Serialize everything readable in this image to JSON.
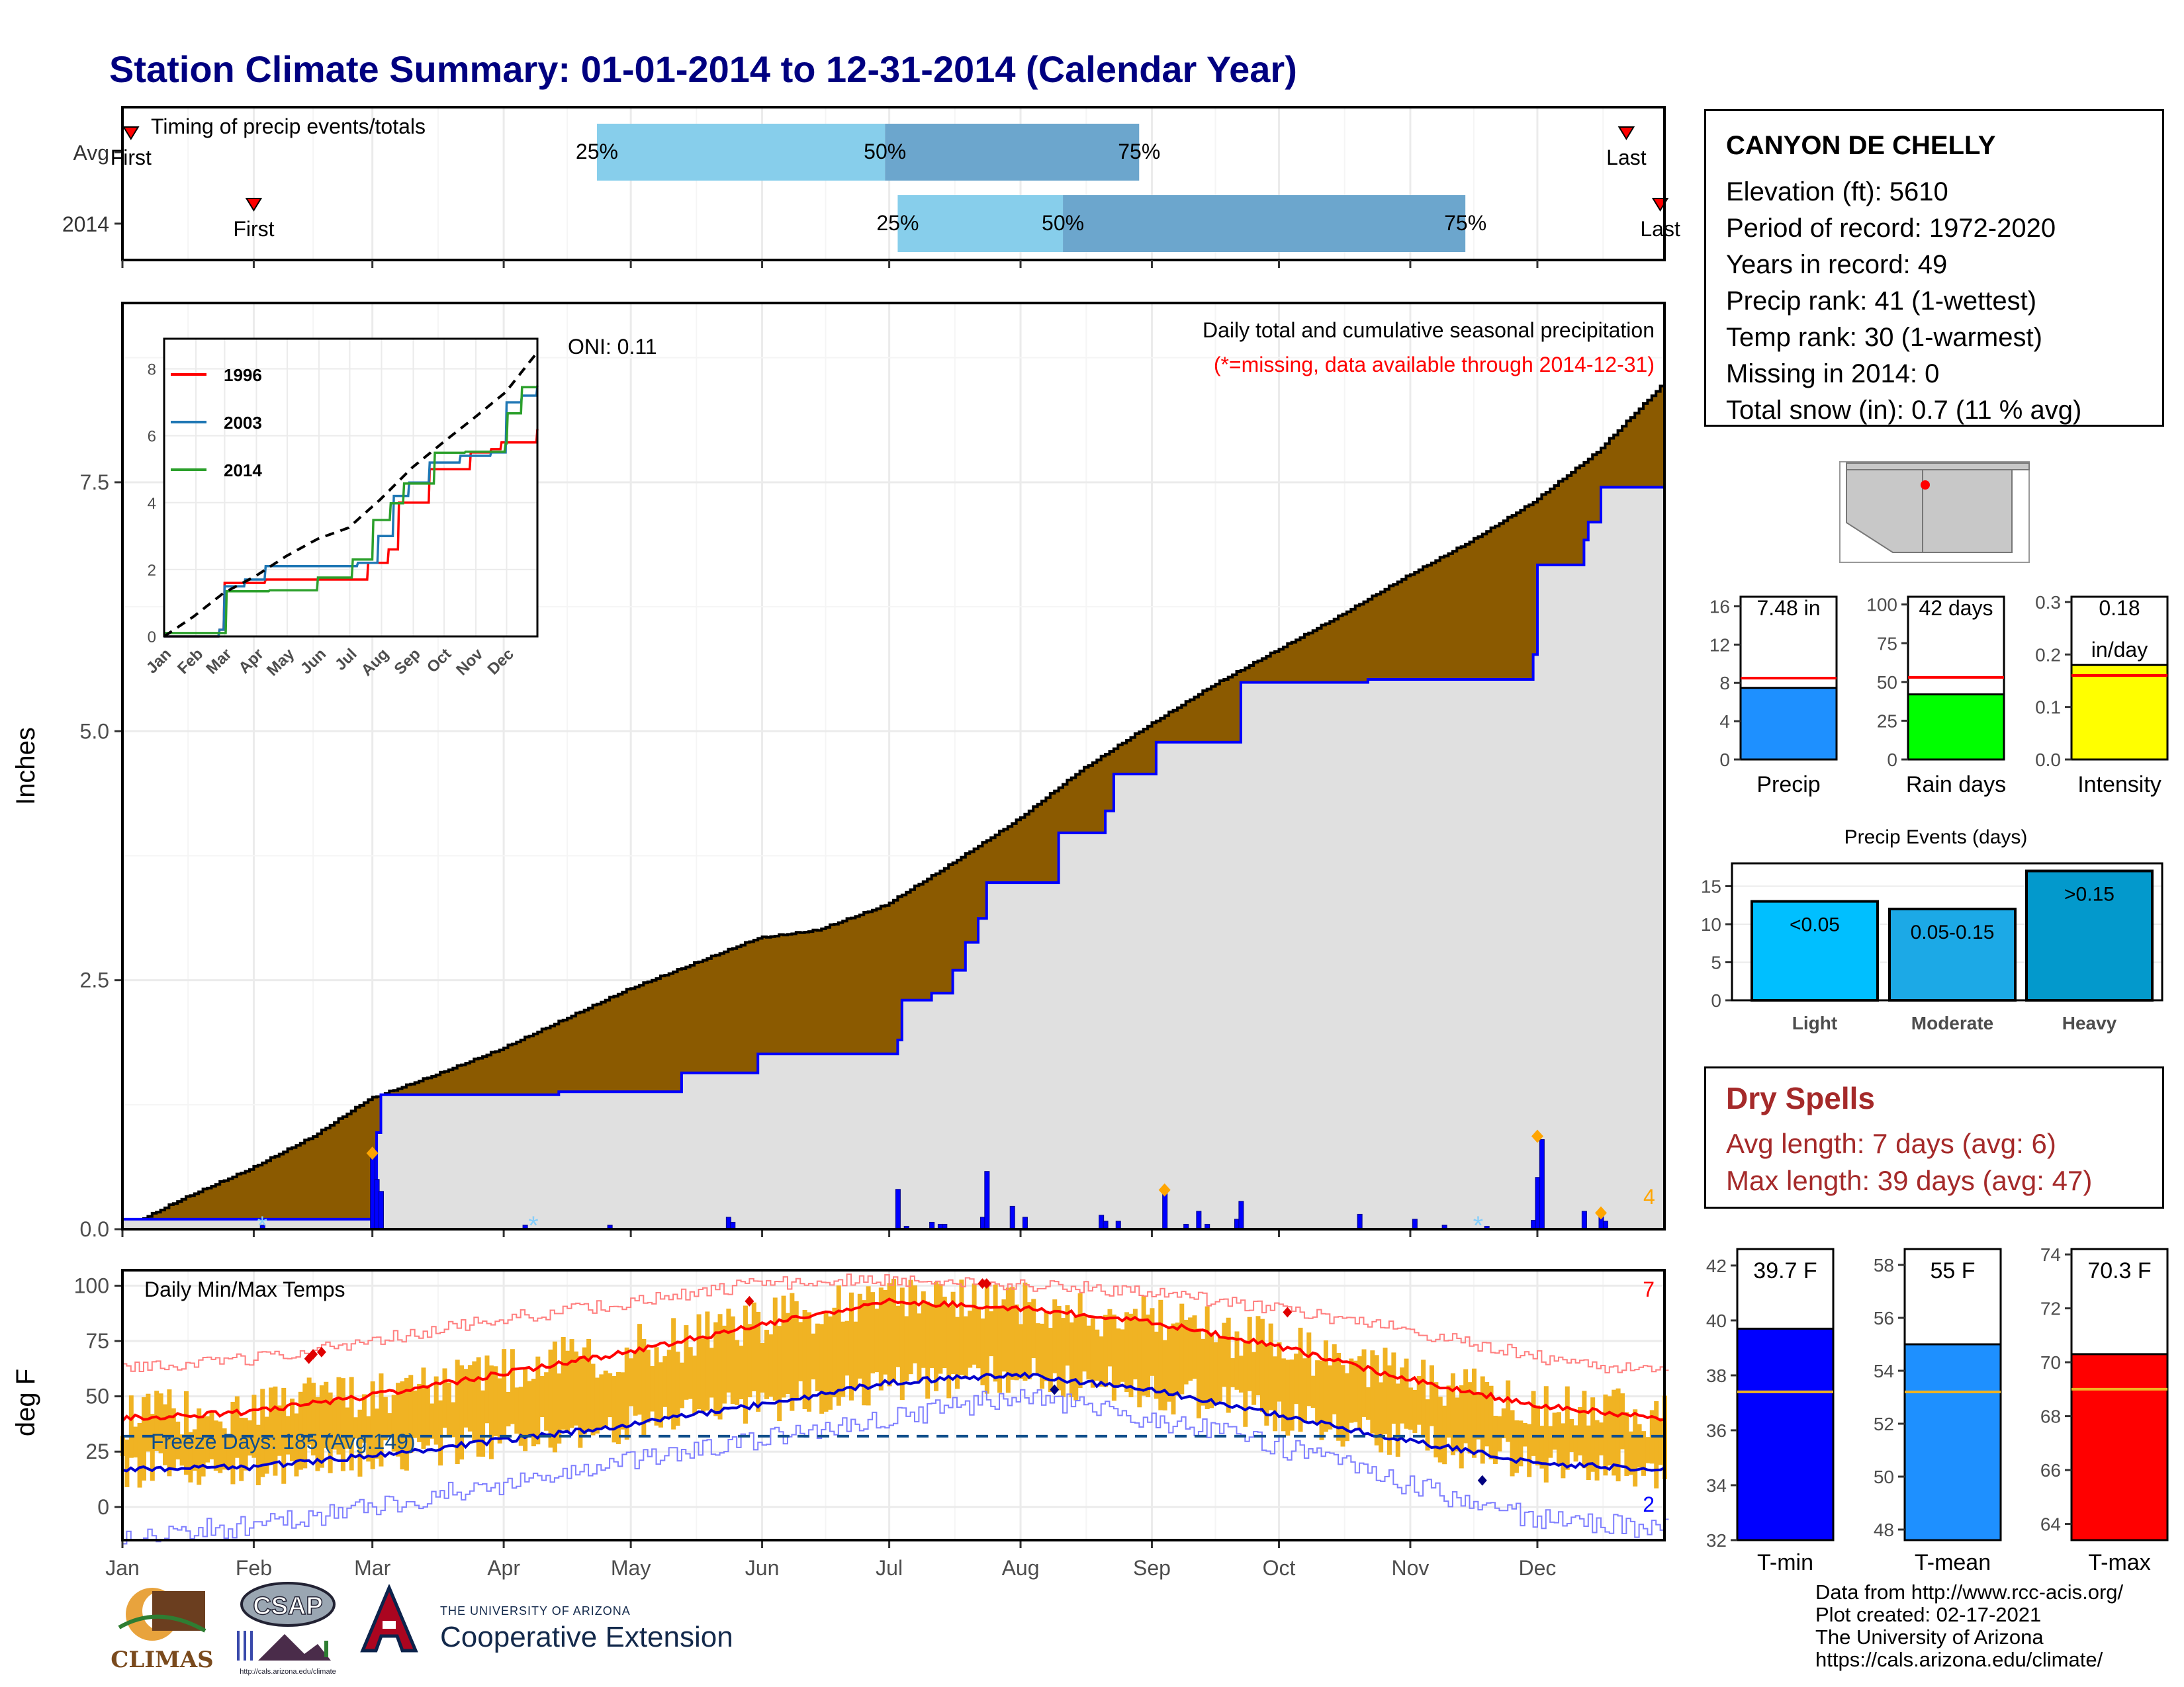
{
  "page": {
    "title": "Station Climate Summary: 01-01-2014 to 12-31-2014 (Calendar Year)"
  },
  "station": {
    "name": "CANYON DE CHELLY",
    "rows": [
      "Elevation (ft): 5610",
      "Period of record: 1972-2020",
      "Years in record: 49",
      "Precip rank: 41 (1-wettest)",
      "Temp rank: 30 (1-warmest)",
      "Missing in 2014: 0",
      "Total snow (in): 0.7 (11 % avg)"
    ]
  },
  "dry_spells": {
    "title": "Dry Spells",
    "avg": "Avg length: 7 days (avg: 6)",
    "max": "Max length: 39 days (avg: 47)"
  },
  "credits": [
    "Data from http://www.rcc-acis.org/",
    "Plot created: 02-17-2021",
    "The University of Arizona",
    "https://cals.arizona.edu/climate/"
  ],
  "logos": {
    "climas": "CLIMAS",
    "csap": "CSAP",
    "csap_url": "http://cals.arizona.edu/climate",
    "ua_small": "THE UNIVERSITY OF ARIZONA",
    "ua_large": "Cooperative Extension"
  },
  "colors": {
    "title": "#000080",
    "precip_fill": "#8B5A00",
    "precip_obs_area": "#E0E0E0",
    "precip_obs_line": "#0000FF",
    "quartile_light": "#87CEEB",
    "quartile_dark": "#6CA6CD",
    "temp_bar": "#F0B323",
    "tmax_avg": "#FF0000",
    "tmin_avg": "#0000CD",
    "dry_spell_text": "#A52A2A"
  },
  "chart_data": [
    {
      "id": "timing",
      "type": "bar",
      "title": "Timing of precip events/totals",
      "rows": [
        "Avg",
        "2014"
      ],
      "avg": {
        "first": "Jan 3",
        "q25": "Apr 23",
        "q50": "Jun 30",
        "q75": "Aug 29",
        "last": "Dec 22"
      },
      "y2014": {
        "first": "Feb 1",
        "q25": "Jul 3",
        "q50": "Aug 11",
        "q75": "Nov 14",
        "last": "Dec 30"
      },
      "labels": {
        "first": "First",
        "last": "Last",
        "q25": "25%",
        "q50": "50%",
        "q75": "75%"
      }
    },
    {
      "id": "precip",
      "type": "area",
      "title": "Daily total and cumulative seasonal precipitation",
      "subtitle": "(*=missing, data available through 2014-12-31)",
      "oni": "ONI: 0.11",
      "ylabel": "Inches",
      "ylim": [
        0,
        9.3
      ],
      "yticks": [
        "0.0",
        "2.5",
        "5.0",
        "7.5"
      ],
      "xticks": [
        "Jan",
        "Feb",
        "Mar",
        "Apr",
        "May",
        "Jun",
        "Jul",
        "Aug",
        "Sep",
        "Oct",
        "Nov",
        "Dec"
      ],
      "top_count": "4",
      "avg_cumulative": [
        [
          1,
          0
        ],
        [
          15,
          0.3
        ],
        [
          31,
          0.6
        ],
        [
          46,
          0.93
        ],
        [
          59,
          1.3
        ],
        [
          75,
          1.55
        ],
        [
          90,
          1.8
        ],
        [
          105,
          2.1
        ],
        [
          120,
          2.4
        ],
        [
          135,
          2.65
        ],
        [
          151,
          2.92
        ],
        [
          165,
          3.0
        ],
        [
          181,
          3.25
        ],
        [
          196,
          3.65
        ],
        [
          212,
          4.1
        ],
        [
          227,
          4.6
        ],
        [
          243,
          5.05
        ],
        [
          258,
          5.45
        ],
        [
          273,
          5.8
        ],
        [
          288,
          6.15
        ],
        [
          304,
          6.55
        ],
        [
          319,
          6.9
        ],
        [
          334,
          7.3
        ],
        [
          349,
          7.8
        ],
        [
          365,
          8.5
        ]
      ],
      "obs_cumulative": [
        [
          1,
          0.1
        ],
        [
          59,
          0.1
        ],
        [
          60,
          0.45
        ],
        [
          61,
          0.97
        ],
        [
          62,
          1.35
        ],
        [
          104,
          1.38
        ],
        [
          133,
          1.57
        ],
        [
          151,
          1.76
        ],
        [
          184,
          1.9
        ],
        [
          185,
          2.3
        ],
        [
          192,
          2.37
        ],
        [
          197,
          2.6
        ],
        [
          200,
          2.88
        ],
        [
          203,
          3.12
        ],
        [
          205,
          3.48
        ],
        [
          222,
          3.98
        ],
        [
          233,
          4.2
        ],
        [
          235,
          4.57
        ],
        [
          245,
          4.89
        ],
        [
          265,
          5.49
        ],
        [
          295,
          5.52
        ],
        [
          334,
          5.77
        ],
        [
          335,
          6.67
        ],
        [
          346,
          6.92
        ],
        [
          347,
          7.1
        ],
        [
          350,
          7.45
        ],
        [
          365,
          7.48
        ]
      ],
      "daily": [
        [
          34,
          0.04
        ],
        [
          60,
          0.75
        ],
        [
          61,
          0.5
        ],
        [
          62,
          0.38
        ],
        [
          96,
          0.04
        ],
        [
          116,
          0.04
        ],
        [
          144,
          0.12
        ],
        [
          145,
          0.07
        ],
        [
          184,
          0.4
        ],
        [
          186,
          0.03
        ],
        [
          192,
          0.07
        ],
        [
          194,
          0.05
        ],
        [
          195,
          0.05
        ],
        [
          204,
          0.12
        ],
        [
          205,
          0.58
        ],
        [
          211,
          0.23
        ],
        [
          214,
          0.12
        ],
        [
          232,
          0.14
        ],
        [
          233,
          0.08
        ],
        [
          236,
          0.08
        ],
        [
          247,
          0.38
        ],
        [
          252,
          0.05
        ],
        [
          255,
          0.18
        ],
        [
          257,
          0.05
        ],
        [
          264,
          0.1
        ],
        [
          265,
          0.28
        ],
        [
          293,
          0.15
        ],
        [
          306,
          0.1
        ],
        [
          313,
          0.04
        ],
        [
          323,
          0.03
        ],
        [
          334,
          0.09
        ],
        [
          335,
          0.52
        ],
        [
          336,
          0.9
        ],
        [
          346,
          0.18
        ],
        [
          350,
          0.15
        ],
        [
          351,
          0.08
        ]
      ]
    },
    {
      "id": "inset",
      "type": "line",
      "yticks": [
        "0",
        "2",
        "4",
        "6",
        "8"
      ],
      "xticks": [
        "Jan",
        "Feb",
        "Mar",
        "Apr",
        "May",
        "Jun",
        "Jul",
        "Aug",
        "Sep",
        "Oct",
        "Nov",
        "Dec"
      ],
      "series": [
        {
          "name": "1996",
          "color": "#FF0000",
          "points": [
            [
              1,
              0
            ],
            [
              40,
              0
            ],
            [
              55,
              0.2
            ],
            [
              60,
              1.6
            ],
            [
              90,
              1.6
            ],
            [
              100,
              1.7
            ],
            [
              150,
              1.7
            ],
            [
              180,
              1.7
            ],
            [
              200,
              2.2
            ],
            [
              220,
              2.6
            ],
            [
              230,
              4
            ],
            [
              250,
              4
            ],
            [
              260,
              5.0
            ],
            [
              300,
              5.5
            ],
            [
              320,
              5.6
            ],
            [
              330,
              5.8
            ],
            [
              365,
              6.2
            ]
          ]
        },
        {
          "name": "2003",
          "color": "#1F77B4",
          "points": [
            [
              1,
              0
            ],
            [
              40,
              0
            ],
            [
              55,
              0.2
            ],
            [
              60,
              1.5
            ],
            [
              80,
              1.7
            ],
            [
              100,
              2.1
            ],
            [
              150,
              2.1
            ],
            [
              190,
              2.2
            ],
            [
              210,
              3.0
            ],
            [
              225,
              4.2
            ],
            [
              240,
              4.6
            ],
            [
              260,
              5.2
            ],
            [
              290,
              5.4
            ],
            [
              320,
              5.5
            ],
            [
              335,
              7.0
            ],
            [
              350,
              7.2
            ],
            [
              365,
              7.5
            ]
          ]
        },
        {
          "name": "2014",
          "color": "#2CA02C",
          "points": [
            [
              1,
              0.1
            ],
            [
              59,
              0.1
            ],
            [
              62,
              1.35
            ],
            [
              104,
              1.38
            ],
            [
              151,
              1.76
            ],
            [
              185,
              2.3
            ],
            [
              205,
              3.48
            ],
            [
              222,
              3.98
            ],
            [
              235,
              4.57
            ],
            [
              265,
              5.49
            ],
            [
              295,
              5.52
            ],
            [
              334,
              5.77
            ],
            [
              336,
              6.67
            ],
            [
              350,
              7.45
            ],
            [
              365,
              7.48
            ]
          ]
        },
        {
          "name": "avg",
          "color": "#000000",
          "dashed": true,
          "points": [
            [
              1,
              0
            ],
            [
              30,
              0.6
            ],
            [
              59,
              1.3
            ],
            [
              90,
              1.8
            ],
            [
              120,
              2.4
            ],
            [
              151,
              2.92
            ],
            [
              181,
              3.25
            ],
            [
              212,
              4.1
            ],
            [
              243,
              5.05
            ],
            [
              273,
              5.8
            ],
            [
              304,
              6.55
            ],
            [
              334,
              7.3
            ],
            [
              365,
              8.5
            ]
          ]
        }
      ]
    },
    {
      "id": "temps",
      "type": "bar",
      "title": "Daily Min/Max Temps",
      "ylabel": "deg F",
      "freeze_label": "Freeze Days: 185 (Avg.149)",
      "freeze_line": 32,
      "ylim": [
        -15,
        107
      ],
      "yticks": [
        "0",
        "25",
        "50",
        "75",
        "100"
      ],
      "xticks": [
        "Jan",
        "Feb",
        "Mar",
        "Apr",
        "May",
        "Jun",
        "Jul",
        "Aug",
        "Sep",
        "Oct",
        "Nov",
        "Dec"
      ],
      "count_max": "7",
      "count_min": "2",
      "avg_tmax": [
        [
          1,
          40
        ],
        [
          31,
          43
        ],
        [
          59,
          50
        ],
        [
          90,
          60
        ],
        [
          120,
          70
        ],
        [
          151,
          82
        ],
        [
          181,
          93
        ],
        [
          212,
          90
        ],
        [
          243,
          84
        ],
        [
          273,
          73
        ],
        [
          304,
          58
        ],
        [
          334,
          46
        ],
        [
          365,
          40
        ]
      ],
      "avg_tmin": [
        [
          1,
          17
        ],
        [
          31,
          18
        ],
        [
          59,
          23
        ],
        [
          90,
          30
        ],
        [
          120,
          37
        ],
        [
          151,
          46
        ],
        [
          181,
          56
        ],
        [
          212,
          60
        ],
        [
          243,
          53
        ],
        [
          273,
          42
        ],
        [
          304,
          30
        ],
        [
          334,
          20
        ],
        [
          365,
          17
        ]
      ],
      "rec_tmax": [
        [
          1,
          62
        ],
        [
          31,
          67
        ],
        [
          59,
          75
        ],
        [
          90,
          85
        ],
        [
          120,
          92
        ],
        [
          151,
          101
        ],
        [
          181,
          103
        ],
        [
          212,
          101
        ],
        [
          243,
          97
        ],
        [
          273,
          90
        ],
        [
          304,
          80
        ],
        [
          334,
          68
        ],
        [
          365,
          60
        ]
      ],
      "rec_tmin": [
        [
          1,
          -12
        ],
        [
          31,
          -9
        ],
        [
          59,
          0
        ],
        [
          90,
          10
        ],
        [
          120,
          20
        ],
        [
          151,
          30
        ],
        [
          181,
          40
        ],
        [
          212,
          50
        ],
        [
          243,
          40
        ],
        [
          273,
          28
        ],
        [
          304,
          10
        ],
        [
          334,
          -5
        ],
        [
          365,
          -10
        ]
      ]
    },
    {
      "id": "precip_small",
      "type": "bar",
      "panels": [
        {
          "label": "Precip",
          "value": 7.48,
          "avg": 8.5,
          "max": 17,
          "ticks": [
            "0",
            "4",
            "8",
            "12",
            "16"
          ],
          "tickvals": [
            0,
            4,
            8,
            12,
            16
          ],
          "color": "#1E90FF",
          "text1": "7.48 in",
          "text2": ""
        },
        {
          "label": "Rain days",
          "value": 42,
          "avg": 53,
          "max": 105,
          "ticks": [
            "0",
            "25",
            "50",
            "75",
            "100"
          ],
          "tickvals": [
            0,
            25,
            50,
            75,
            100
          ],
          "color": "#00FF00",
          "text1": "42 days",
          "text2": ""
        },
        {
          "label": "Intensity",
          "value": 0.18,
          "avg": 0.16,
          "max": 0.31,
          "ticks": [
            "0.0",
            "0.1",
            "0.2",
            "0.3"
          ],
          "tickvals": [
            0,
            0.1,
            0.2,
            0.3
          ],
          "color": "#FFFF00",
          "text1": "0.18",
          "text2": "in/day"
        }
      ]
    },
    {
      "id": "precip_events",
      "type": "bar",
      "title": "Precip Events (days)",
      "categories": [
        "Light",
        "Moderate",
        "Heavy"
      ],
      "values": [
        13,
        12,
        17
      ],
      "bar_labels": [
        "<0.05",
        "0.05-0.15",
        ">0.15"
      ],
      "colors": [
        "#00BFFF",
        "#1CA9E6",
        "#0399CC"
      ],
      "ylim": [
        0,
        18
      ],
      "yticks": [
        "0",
        "5",
        "10",
        "15"
      ]
    },
    {
      "id": "temp_small",
      "type": "bar",
      "panels": [
        {
          "label": "T-min",
          "value": 39.7,
          "avg": 37.4,
          "min": 32,
          "max": 42.6,
          "ticks": [
            "32",
            "34",
            "36",
            "38",
            "40",
            "42"
          ],
          "tickvals": [
            32,
            34,
            36,
            38,
            40,
            42
          ],
          "color": "#0000FF",
          "text": "39.7 F"
        },
        {
          "label": "T-mean",
          "value": 55,
          "avg": 53.2,
          "min": 47.6,
          "max": 58.6,
          "ticks": [
            "48",
            "50",
            "52",
            "54",
            "56",
            "58"
          ],
          "tickvals": [
            48,
            50,
            52,
            54,
            56,
            58
          ],
          "color": "#1E90FF",
          "text": "55 F"
        },
        {
          "label": "T-max",
          "value": 70.3,
          "avg": 69,
          "min": 63.4,
          "max": 74.2,
          "ticks": [
            "64",
            "66",
            "68",
            "70",
            "72",
            "74"
          ],
          "tickvals": [
            64,
            66,
            68,
            70,
            72,
            74
          ],
          "color": "#FF0000",
          "text": "70.3 F"
        }
      ]
    }
  ]
}
